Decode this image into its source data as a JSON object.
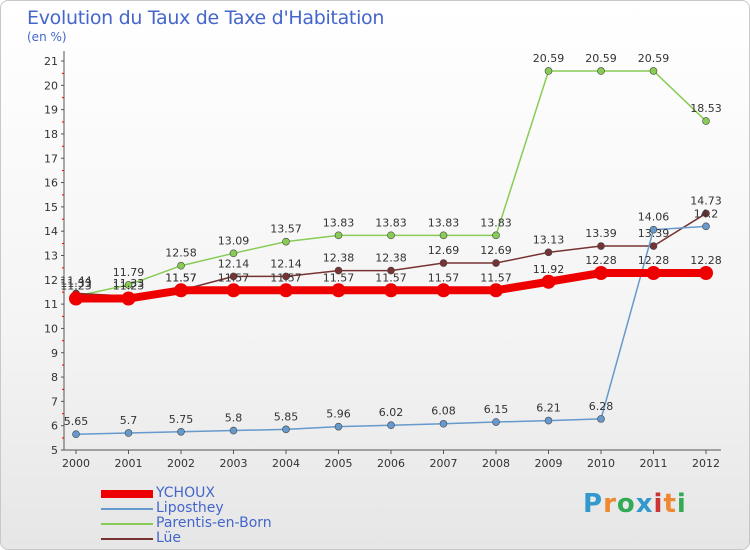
{
  "title": "Evolution du Taux de Taxe d'Habitation",
  "unit": "(en %)",
  "logo": {
    "text": "Proxiti",
    "colors": [
      "#3399cc",
      "#ee8833",
      "#33aa55",
      "#3399cc",
      "#cc3333",
      "#ee8833",
      "#33aa55"
    ]
  },
  "chart_data": {
    "type": "line",
    "title": "Evolution du Taux de Taxe d'Habitation",
    "ylabel": "(en %)",
    "x": [
      "2000",
      "2001",
      "2002",
      "2003",
      "2004",
      "2005",
      "2006",
      "2007",
      "2008",
      "2009",
      "2010",
      "2011",
      "2012"
    ],
    "ylim": [
      5,
      21
    ],
    "yticks": [
      5,
      6,
      7,
      8,
      9,
      10,
      11,
      12,
      13,
      14,
      15,
      16,
      17,
      18,
      19,
      20,
      21
    ],
    "grid": false,
    "legend": "bottom-left",
    "series": [
      {
        "name": "YCHOUX",
        "color": "#ee0000",
        "values": [
          11.23,
          11.23,
          11.57,
          11.57,
          11.57,
          11.57,
          11.57,
          11.57,
          11.57,
          11.92,
          12.28,
          12.28,
          12.28
        ]
      },
      {
        "name": "Liposthey",
        "color": "#6699cc",
        "values": [
          5.65,
          5.7,
          5.75,
          5.8,
          5.85,
          5.96,
          6.02,
          6.08,
          6.15,
          6.21,
          6.28,
          14.06,
          14.2
        ]
      },
      {
        "name": "Parentis-en-Born",
        "color": "#88cc55",
        "values": [
          11.33,
          11.79,
          12.58,
          13.09,
          13.57,
          13.83,
          13.83,
          13.83,
          13.83,
          20.59,
          20.59,
          20.59,
          18.53
        ]
      },
      {
        "name": "Lüe",
        "color": "#773333",
        "values": [
          11.44,
          11.33,
          11.57,
          12.14,
          12.14,
          12.38,
          12.38,
          12.69,
          12.69,
          13.13,
          13.39,
          13.39,
          14.73
        ]
      }
    ]
  }
}
